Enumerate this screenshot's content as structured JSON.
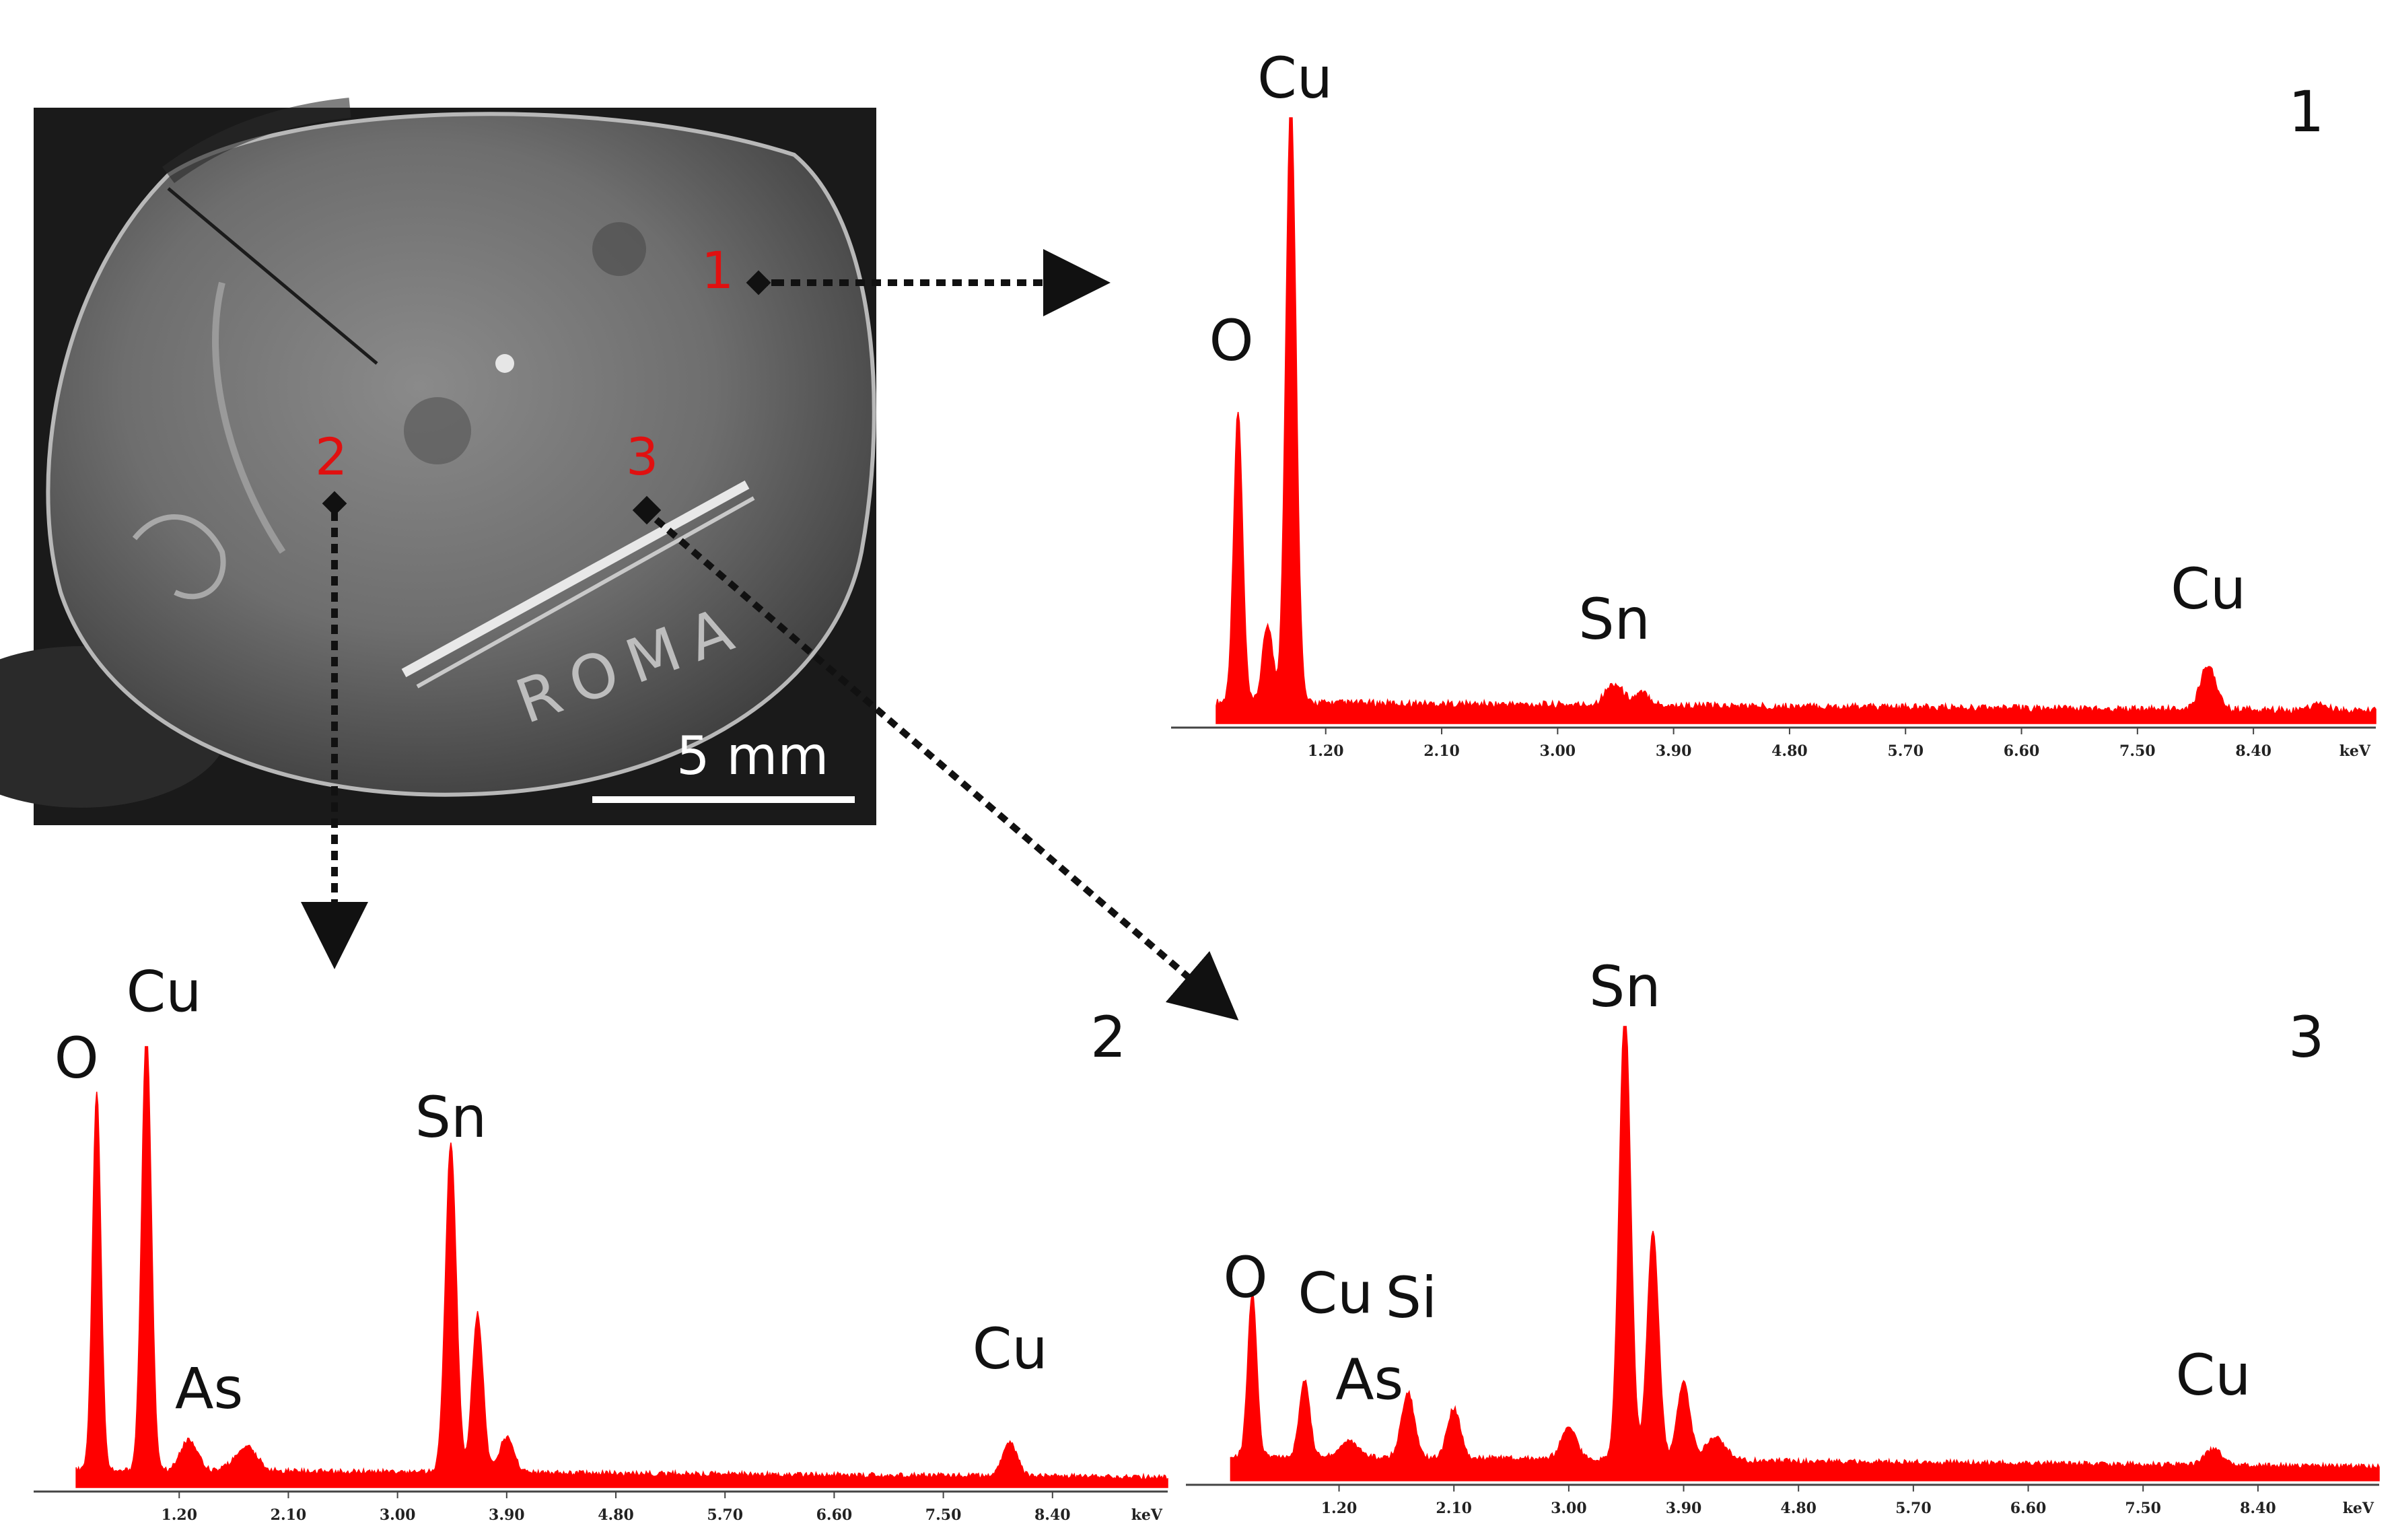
{
  "sem_image": {
    "scale_bar_label": "5 mm",
    "inscription": "ROMA",
    "point_color": "#e01010",
    "points": [
      {
        "label": "1"
      },
      {
        "label": "2"
      },
      {
        "label": "3"
      }
    ]
  },
  "spectrum_color": "#ff0000",
  "chart_data": [
    {
      "type": "area",
      "panel": "1",
      "xlabel": "keV",
      "xlim": [
        0.0,
        9.35
      ],
      "ylim": [
        0,
        1.0
      ],
      "x_ticks": [
        "1.20",
        "2.10",
        "3.00",
        "3.90",
        "4.80",
        "5.70",
        "6.60",
        "7.50",
        "8.40"
      ],
      "baseline": 0.03,
      "peaks": [
        {
          "element": "O",
          "x": 0.52,
          "y": 0.48,
          "w": 0.035
        },
        {
          "element": "",
          "x": 0.75,
          "y": 0.13,
          "w": 0.04
        },
        {
          "element": "Cu",
          "x": 0.93,
          "y": 1.0,
          "w": 0.04
        },
        {
          "element": "Sn",
          "x": 3.44,
          "y": 0.035,
          "w": 0.07
        },
        {
          "element": "",
          "x": 3.66,
          "y": 0.02,
          "w": 0.06
        },
        {
          "element": "Cu",
          "x": 8.05,
          "y": 0.075,
          "w": 0.06
        },
        {
          "element": "",
          "x": 8.91,
          "y": 0.01,
          "w": 0.06
        }
      ],
      "labels": [
        {
          "text": "O",
          "x": 0.52
        },
        {
          "text": "Cu",
          "x": 0.93
        },
        {
          "text": "Sn",
          "x": 3.44
        },
        {
          "text": "Cu",
          "x": 8.05
        }
      ]
    },
    {
      "type": "area",
      "panel": "2",
      "xlabel": "keV",
      "xlim": [
        0.0,
        9.35
      ],
      "ylim": [
        0,
        1.0
      ],
      "x_ticks": [
        "1.20",
        "2.10",
        "3.00",
        "3.90",
        "4.80",
        "5.70",
        "6.60",
        "7.50",
        "8.40"
      ],
      "baseline": 0.035,
      "peaks": [
        {
          "element": "O",
          "x": 0.52,
          "y": 0.86,
          "w": 0.035
        },
        {
          "element": "Cu",
          "x": 0.93,
          "y": 1.0,
          "w": 0.04
        },
        {
          "element": "As",
          "x": 1.28,
          "y": 0.07,
          "w": 0.07
        },
        {
          "element": "",
          "x": 1.75,
          "y": 0.055,
          "w": 0.09
        },
        {
          "element": "Sn",
          "x": 3.44,
          "y": 0.75,
          "w": 0.045
        },
        {
          "element": "",
          "x": 3.66,
          "y": 0.36,
          "w": 0.045
        },
        {
          "element": "",
          "x": 3.9,
          "y": 0.08,
          "w": 0.06
        },
        {
          "element": "Cu",
          "x": 8.05,
          "y": 0.075,
          "w": 0.06
        }
      ],
      "labels": [
        {
          "text": "O",
          "x": 0.52
        },
        {
          "text": "Cu",
          "x": 0.93
        },
        {
          "text": "As",
          "x": 1.28
        },
        {
          "text": "Sn",
          "x": 3.44
        },
        {
          "text": "Cu",
          "x": 8.05
        }
      ]
    },
    {
      "type": "area",
      "panel": "3",
      "xlabel": "keV",
      "xlim": [
        0.0,
        9.35
      ],
      "ylim": [
        0,
        1.0
      ],
      "x_ticks": [
        "1.20",
        "2.10",
        "3.00",
        "3.90",
        "4.80",
        "5.70",
        "6.60",
        "7.50",
        "8.40"
      ],
      "baseline": 0.05,
      "peaks": [
        {
          "element": "O",
          "x": 0.52,
          "y": 0.36,
          "w": 0.035
        },
        {
          "element": "Cu",
          "x": 0.93,
          "y": 0.17,
          "w": 0.04
        },
        {
          "element": "As",
          "x": 1.28,
          "y": 0.035,
          "w": 0.07
        },
        {
          "element": "Si",
          "x": 1.74,
          "y": 0.145,
          "w": 0.05
        },
        {
          "element": "",
          "x": 2.1,
          "y": 0.11,
          "w": 0.05
        },
        {
          "element": "",
          "x": 3.0,
          "y": 0.07,
          "w": 0.06
        },
        {
          "element": "Sn",
          "x": 3.44,
          "y": 1.0,
          "w": 0.045
        },
        {
          "element": "",
          "x": 3.66,
          "y": 0.5,
          "w": 0.045
        },
        {
          "element": "",
          "x": 3.9,
          "y": 0.17,
          "w": 0.05
        },
        {
          "element": "",
          "x": 4.15,
          "y": 0.05,
          "w": 0.08
        },
        {
          "element": "Cu",
          "x": 8.05,
          "y": 0.035,
          "w": 0.07
        }
      ],
      "labels": [
        {
          "text": "O",
          "x": 0.52
        },
        {
          "text": "Cu",
          "x": 0.93
        },
        {
          "text": "As",
          "x": 1.28
        },
        {
          "text": "Si",
          "x": 1.74
        },
        {
          "text": "Sn",
          "x": 3.44
        },
        {
          "text": "Cu",
          "x": 8.05
        }
      ]
    }
  ]
}
